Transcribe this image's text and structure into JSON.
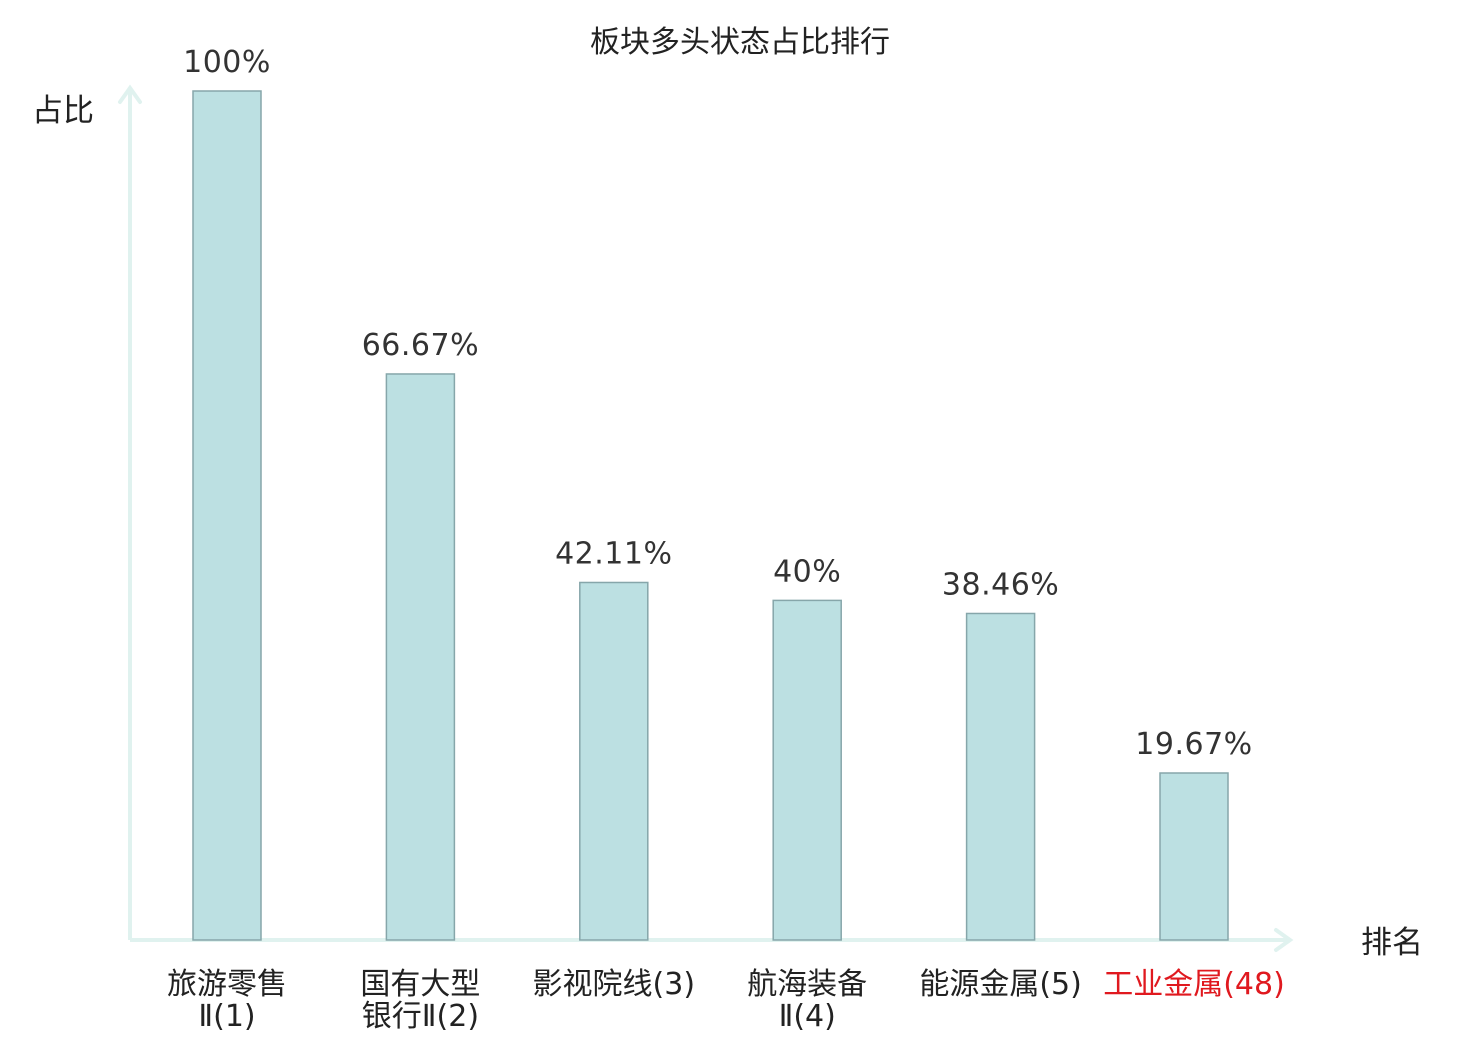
{
  "chart_data": {
    "type": "bar",
    "title": "板块多头状态占比排行",
    "ylabel": "占比",
    "xlabel": "排名",
    "ylim": [
      0,
      100
    ],
    "grid": false,
    "categories": [
      {
        "lines": [
          "旅游零售",
          "Ⅱ(1)"
        ],
        "highlight": false
      },
      {
        "lines": [
          "国有大型",
          "银行Ⅱ(2)"
        ],
        "highlight": false
      },
      {
        "lines": [
          "影视院线(3)"
        ],
        "highlight": false
      },
      {
        "lines": [
          "航海装备",
          "Ⅱ(4)"
        ],
        "highlight": false
      },
      {
        "lines": [
          "能源金属(5)"
        ],
        "highlight": false
      },
      {
        "lines": [
          "工业金属(48)"
        ],
        "highlight": true
      }
    ],
    "values": [
      100,
      66.67,
      42.11,
      40,
      38.46,
      19.67
    ],
    "value_labels": [
      "100%",
      "66.67%",
      "42.11%",
      "40%",
      "38.46%",
      "19.67%"
    ],
    "colors": {
      "bar_fill": "#bce0e2",
      "bar_stroke": "#86a6aa",
      "axis": "#e0f2ef",
      "text": "#222222",
      "highlight_text": "#e0191f"
    }
  }
}
